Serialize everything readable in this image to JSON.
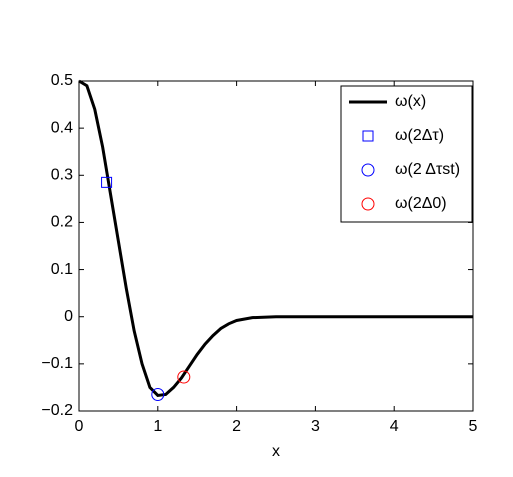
{
  "chart_data": {
    "type": "line",
    "xlabel": "x",
    "xlim": [
      0,
      5
    ],
    "ylim": [
      -0.2,
      0.5
    ],
    "xticks": [
      0,
      1,
      2,
      3,
      4,
      5
    ],
    "yticks": [
      {
        "value": -0.2,
        "label": "−0.2"
      },
      {
        "value": -0.1,
        "label": "−0.1"
      },
      0,
      0.1,
      0.2,
      0.3,
      0.4,
      0.5
    ],
    "legend": "upper right",
    "series": [
      {
        "name": "ω(x)",
        "color": "#000000",
        "marker": "none",
        "x": [
          0,
          0.1,
          0.2,
          0.3,
          0.4,
          0.5,
          0.6,
          0.7,
          0.8,
          0.9,
          1.0,
          1.1,
          1.2,
          1.3,
          1.4,
          1.5,
          1.6,
          1.7,
          1.8,
          1.9,
          2.0,
          2.2,
          2.5,
          3,
          4,
          5
        ],
        "values": [
          0.5,
          0.49,
          0.44,
          0.36,
          0.26,
          0.16,
          0.06,
          -0.03,
          -0.1,
          -0.15,
          -0.167,
          -0.165,
          -0.15,
          -0.13,
          -0.105,
          -0.08,
          -0.058,
          -0.04,
          -0.025,
          -0.015,
          -0.008,
          -0.002,
          0,
          0,
          0,
          0
        ]
      },
      {
        "name": "ω(2Δτ)",
        "color": "#0000ff",
        "marker": "square",
        "x": [
          0.35
        ],
        "values": [
          0.285
        ]
      },
      {
        "name": "ω(2 Δτst)",
        "color": "#0000ff",
        "marker": "circle",
        "x": [
          1.0
        ],
        "values": [
          -0.165
        ]
      },
      {
        "name": "ω(2Δ0)",
        "color": "#ff0000",
        "marker": "circle",
        "x": [
          1.33
        ],
        "values": [
          -0.128
        ]
      }
    ]
  }
}
